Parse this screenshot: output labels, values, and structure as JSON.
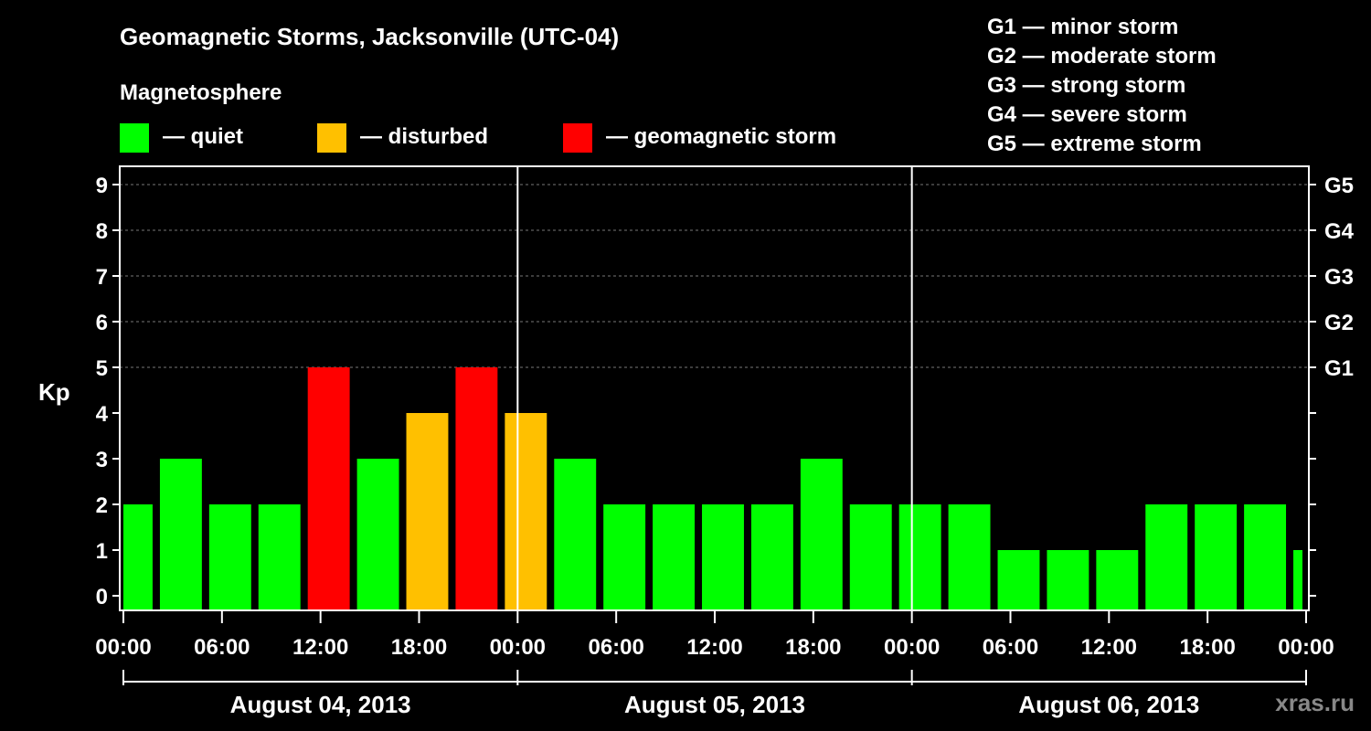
{
  "chart_data": {
    "type": "bar",
    "title": "Geomagnetic Storms, Jacksonville (UTC-04)",
    "subtitle": "Magnetosphere",
    "ylabel": "Kp",
    "ylim": [
      0,
      9
    ],
    "yticks": [
      "0",
      "1",
      "2",
      "3",
      "4",
      "5",
      "6",
      "7",
      "8",
      "9"
    ],
    "right_ticks": [
      {
        "kp": 5,
        "label": "G1"
      },
      {
        "kp": 6,
        "label": "G2"
      },
      {
        "kp": 7,
        "label": "G3"
      },
      {
        "kp": 8,
        "label": "G4"
      },
      {
        "kp": 9,
        "label": "G5"
      }
    ],
    "xlim_hours": [
      0,
      72
    ],
    "xticks": [
      "00:00",
      "06:00",
      "12:00",
      "18:00",
      "00:00",
      "06:00",
      "12:00",
      "18:00",
      "00:00",
      "06:00",
      "12:00",
      "18:00",
      "00:00"
    ],
    "days": [
      "August 04, 2013",
      "August 05, 2013",
      "August 06, 2013"
    ],
    "legend": [
      {
        "label": "— quiet",
        "color": "#00ff00"
      },
      {
        "label": "— disturbed",
        "color": "#ffc000"
      },
      {
        "label": "— geomagnetic storm",
        "color": "#ff0000"
      }
    ],
    "storm_scale": [
      "G1 — minor storm",
      "G2 — moderate storm",
      "G3 — strong storm",
      "G4 — severe storm",
      "G5 — extreme storm"
    ],
    "bars": [
      {
        "start": 0,
        "end": 2,
        "kp": 2,
        "level": "quiet"
      },
      {
        "start": 2,
        "end": 5,
        "kp": 3,
        "level": "quiet"
      },
      {
        "start": 5,
        "end": 8,
        "kp": 2,
        "level": "quiet"
      },
      {
        "start": 8,
        "end": 11,
        "kp": 2,
        "level": "quiet"
      },
      {
        "start": 11,
        "end": 14,
        "kp": 5,
        "level": "storm"
      },
      {
        "start": 14,
        "end": 17,
        "kp": 3,
        "level": "quiet"
      },
      {
        "start": 17,
        "end": 20,
        "kp": 4,
        "level": "disturbed"
      },
      {
        "start": 20,
        "end": 23,
        "kp": 5,
        "level": "storm"
      },
      {
        "start": 23,
        "end": 26,
        "kp": 4,
        "level": "disturbed"
      },
      {
        "start": 26,
        "end": 29,
        "kp": 3,
        "level": "quiet"
      },
      {
        "start": 29,
        "end": 32,
        "kp": 2,
        "level": "quiet"
      },
      {
        "start": 32,
        "end": 35,
        "kp": 2,
        "level": "quiet"
      },
      {
        "start": 35,
        "end": 38,
        "kp": 2,
        "level": "quiet"
      },
      {
        "start": 38,
        "end": 41,
        "kp": 2,
        "level": "quiet"
      },
      {
        "start": 41,
        "end": 44,
        "kp": 3,
        "level": "quiet"
      },
      {
        "start": 44,
        "end": 47,
        "kp": 2,
        "level": "quiet"
      },
      {
        "start": 47,
        "end": 50,
        "kp": 2,
        "level": "quiet"
      },
      {
        "start": 50,
        "end": 53,
        "kp": 2,
        "level": "quiet"
      },
      {
        "start": 53,
        "end": 56,
        "kp": 1,
        "level": "quiet"
      },
      {
        "start": 56,
        "end": 59,
        "kp": 1,
        "level": "quiet"
      },
      {
        "start": 59,
        "end": 62,
        "kp": 1,
        "level": "quiet"
      },
      {
        "start": 62,
        "end": 65,
        "kp": 2,
        "level": "quiet"
      },
      {
        "start": 65,
        "end": 68,
        "kp": 2,
        "level": "quiet"
      },
      {
        "start": 68,
        "end": 71,
        "kp": 2,
        "level": "quiet"
      },
      {
        "start": 71,
        "end": 72,
        "kp": 1,
        "level": "quiet"
      }
    ],
    "level_colors": {
      "quiet": "#00ff00",
      "disturbed": "#ffc000",
      "storm": "#ff0000"
    },
    "grid": true,
    "watermark": "xras.ru"
  }
}
